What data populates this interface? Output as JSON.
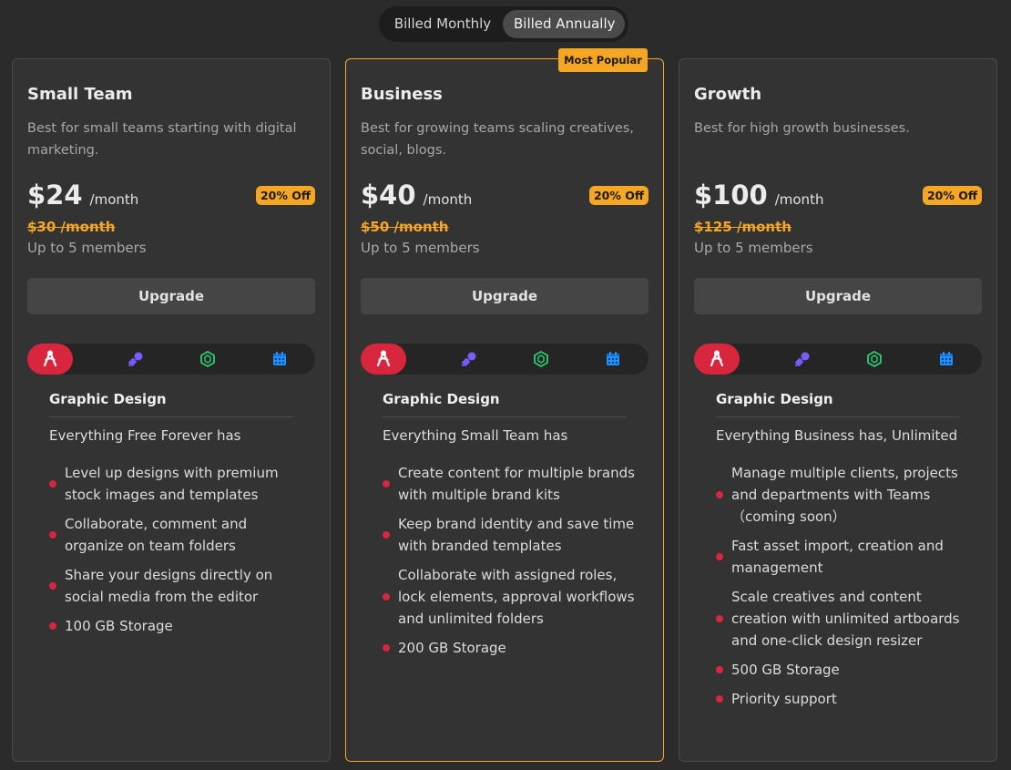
{
  "billing_toggle": {
    "monthly_label": "Billed Monthly",
    "annually_label": "Billed Annually",
    "selected": "Billed Annually"
  },
  "icons": [
    "design-icon",
    "rocket-icon",
    "cube-icon",
    "calendar-icon"
  ],
  "colors": {
    "accent": "#f5a623",
    "feature_bullet": "#d7263d",
    "active_tab": "#d7263d",
    "rocket": "#7b5cff",
    "cube": "#2ecc71",
    "calendar": "#1e90ff"
  },
  "plans": [
    {
      "name": "Small Team",
      "description": "Best for small teams starting with digital marketing.",
      "price": "$24",
      "period": "/month",
      "discount": "20% Off",
      "old_price": "$30 /month",
      "members": "Up to 5 members",
      "button": "Upgrade",
      "section": "Graphic Design",
      "includes": "Everything Free Forever has",
      "features": [
        "Level up designs with premium stock images and templates",
        "Collaborate, comment and organize on team folders",
        "Share your designs directly on social media from the editor",
        "100 GB Storage"
      ]
    },
    {
      "name": "Business",
      "badge": "Most Popular",
      "description": "Best for growing teams scaling creatives, social, blogs.",
      "price": "$40",
      "period": "/month",
      "discount": "20% Off",
      "old_price": "$50 /month",
      "members": "Up to 5 members",
      "button": "Upgrade",
      "section": "Graphic Design",
      "includes": "Everything Small Team has",
      "features": [
        "Create content for multiple brands with multiple brand kits",
        "Keep brand identity and save time with branded templates",
        "Collaborate with assigned roles, lock elements, approval workflows and unlimited folders",
        "200 GB Storage"
      ]
    },
    {
      "name": "Growth",
      "description": "Best for high growth businesses.",
      "price": "$100",
      "period": "/month",
      "discount": "20% Off",
      "old_price": "$125 /month",
      "members": " Up to 5 members",
      "button": "Upgrade",
      "section": "Graphic Design",
      "includes": "Everything Business has, Unlimited",
      "features": [
        "Manage multiple clients, projects and departments with Teams （coming soon）",
        "Fast asset import, creation and management",
        "Scale creatives and content creation with unlimited artboards and one-click design resizer",
        "500 GB Storage",
        "Priority support"
      ]
    }
  ]
}
